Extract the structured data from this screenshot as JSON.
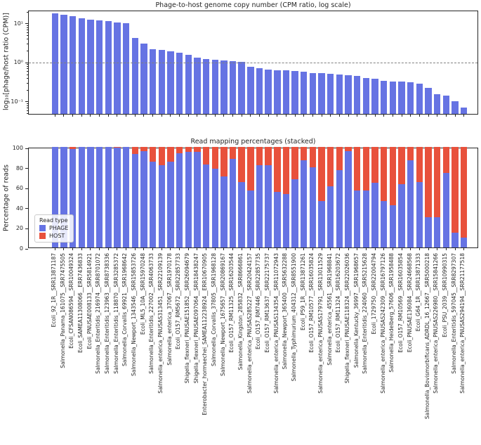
{
  "figure": {
    "top_title": "Phage-to-host genome copy number (CPM ratio, log scale)",
    "bottom_title": "Read mapping percentages (stacked)",
    "top_ylabel": "log₁₀[phage/host ratio (CPM)]",
    "bottom_ylabel": "Percentage of reads"
  },
  "colors": {
    "phage": "#6673e3",
    "host": "#e8513c",
    "ref_line": "#808080",
    "axis": "#262626"
  },
  "samples": [
    "Ecoli_92_1R__SRR13871187",
    "Salmonella_Panama_161075__SRR7475505",
    "Ecoli_CFSAN086594__SRR10049324",
    "Ecoli_SAMEA11308066__ERR7436833",
    "Ecoli_PNUSAE008133__SRR5814921",
    "Salmonella_Enteritidis_216974__SRR8701072",
    "Salmonella_Enteritidis_123963__SRR8738336",
    "Salmonella_Enteritidis_118870__SRR3285372",
    "Salmonella_Corvallis_69921__SRR1968642",
    "Salmonella_Newport_1343546__SRR15853726",
    "Ecoli_ML5_10A__SRR15970248",
    "Salmonella_Enteritidis_227002__SRR4063733",
    "Salmonella_enterica_PNUSAS313451__SRR22109139",
    "Salmonella_enterica_37067__SRR1970178",
    "Ecoli_O157_RM5672__SRR22857733",
    "Shigella_flexneri_PNUSAE151852__SRR26094679",
    "Shigella_flexneri_PNUSAE097064__SRR18438247",
    "Enterobacter_hormaechei_SAMEA112238924__ERR10670905",
    "Salmonella_Corvallis_37805__SRR1968128",
    "Salmonella_Newport_1675657__SRR20869167",
    "Ecoli_O157_RM11325__SRR16203544",
    "Salmonella_Kingston_285832__SRR8666861",
    "Salmonella_enterica_PNUSAS285227__SRR20424157",
    "Ecoli_O157_RM7446__SRR22857735",
    "Ecoli_O157_RM13637__SRR22175737",
    "Salmonella_enterica_PNUSAS134354__SRR11072943",
    "Salmonella_Newport_365400__SRR5632288",
    "Salmonella_Typhimurium_404312__SRR8551900",
    "Ecoli_P59_1R__SRR13871261",
    "Ecoli_O157_RM10577__SRR16035824",
    "Salmonella_enterica_PNUSAS179791__SRR13011529",
    "Salmonella_enterica_45561__SRR1968841",
    "Ecoli_O157_RM11324__SRR16203672",
    "Shigella_flexneri_PNUSAE118324__SRR22026036",
    "Salmonella_Kentucky_36997__SRR1968657",
    "Salmonella_Enteritidis_224060__SRR5215628",
    "Ecoli_1729750__SRR22004794",
    "Salmonella_enterica_PNUSAS242309__SRR16797126",
    "Salmonella_Heidelberg_57606__SRR1958488",
    "Ecoli_O157_RM10569__SRR16035854",
    "Ecoli_PNUSAE136084__SRR24668568",
    "Ecoli_G64_1R__SRR13871333",
    "Salmonella_Bovismorbificans_ADRDL_16_12667__SRR5000218",
    "Salmonella_enterica_PNUSAS226980__SRR15841266",
    "Ecoli_PSU_2039__SRR10990315",
    "Salmonella_Enteritidis_597045__SRR8297307",
    "Salmonella_enterica_PNUSAS294194__SRR21177518"
  ],
  "chart_data": [
    {
      "type": "bar",
      "title": "Phage-to-host genome copy number (CPM ratio, log scale)",
      "ylabel": "log₁₀[phage/host ratio (CPM)]",
      "yscale": "log",
      "ylim": [
        0.045,
        21
      ],
      "yticks": [
        {
          "label": "10¹",
          "value": 10
        },
        {
          "label": "10⁰",
          "value": 1
        },
        {
          "label": "10⁻¹",
          "value": 0.1
        }
      ],
      "reference_line": 1.0,
      "grid": false,
      "bar_color": "#6673e3",
      "categories": "see top-level samples (shared x axis)",
      "values": [
        17,
        15.5,
        14.5,
        12.8,
        11.8,
        11.5,
        11,
        9.9,
        9.5,
        4.0,
        2.9,
        2.05,
        2.0,
        1.85,
        1.7,
        1.45,
        1.25,
        1.16,
        1.1,
        1.06,
        1.03,
        0.98,
        0.73,
        0.67,
        0.61,
        0.59,
        0.59,
        0.57,
        0.55,
        0.51,
        0.5,
        0.48,
        0.47,
        0.44,
        0.42,
        0.37,
        0.36,
        0.32,
        0.31,
        0.3,
        0.29,
        0.27,
        0.21,
        0.145,
        0.13,
        0.095,
        0.065
      ]
    },
    {
      "type": "bar",
      "stacked": true,
      "title": "Read mapping percentages (stacked)",
      "ylabel": "Percentage of reads",
      "ylim": [
        0,
        100
      ],
      "yticks": [
        0,
        20,
        40,
        60,
        80,
        100
      ],
      "grid": false,
      "legend": {
        "title": "Read type",
        "position": "lower left inside axes",
        "entries": [
          {
            "label": "PHAGE",
            "color": "#6673e3"
          },
          {
            "label": "HOST",
            "color": "#e8513c"
          }
        ]
      },
      "categories": "see top-level samples (shared x axis)",
      "series": [
        {
          "name": "PHAGE",
          "values": [
            100,
            100,
            98,
            100,
            100,
            100,
            100,
            99.5,
            100,
            93,
            96,
            85.5,
            82,
            85,
            94,
            95,
            95,
            82.5,
            78,
            70.5,
            88,
            65,
            56.5,
            82,
            82,
            55.5,
            53.5,
            67.5,
            86.5,
            79.5,
            46,
            61,
            77,
            96,
            57,
            57,
            64,
            46.5,
            42,
            63,
            87,
            65,
            30,
            30,
            74,
            15,
            10
          ]
        },
        {
          "name": "HOST",
          "values": [
            0,
            0,
            2,
            0,
            0,
            0,
            0,
            0.5,
            0,
            7,
            4,
            14.5,
            18,
            15,
            6,
            5,
            5,
            17.5,
            22,
            29.5,
            12,
            35,
            43.5,
            18,
            18,
            44.5,
            46.5,
            32.5,
            13.5,
            20.5,
            54,
            39,
            23,
            4,
            43,
            43,
            36,
            53.5,
            58,
            37,
            13,
            35,
            70,
            70,
            26,
            85,
            90
          ]
        }
      ]
    }
  ]
}
